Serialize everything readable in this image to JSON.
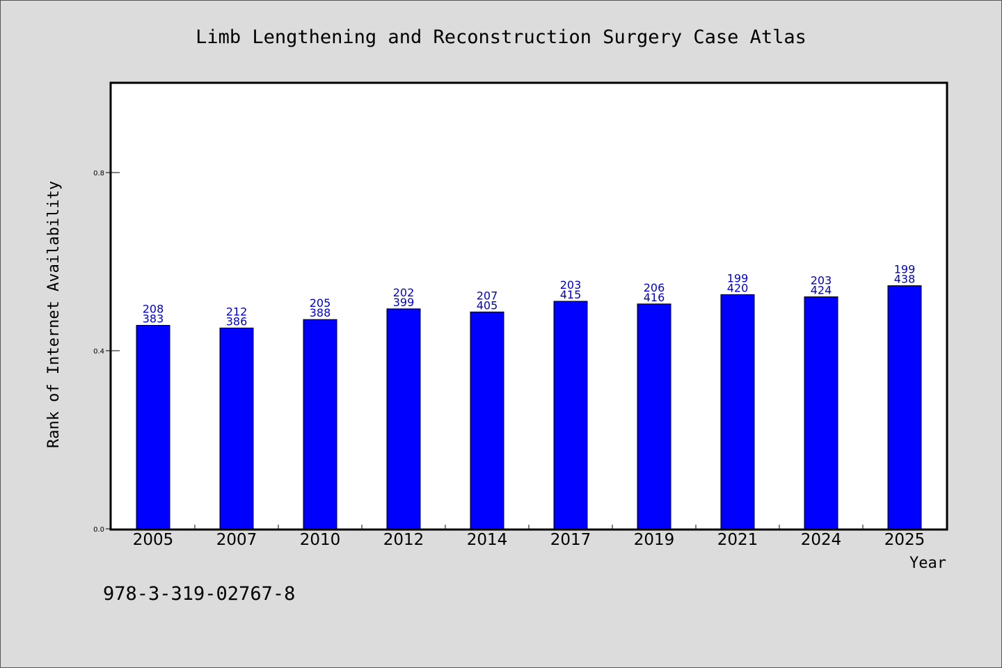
{
  "chart_data": {
    "type": "bar",
    "title": "Limb Lengthening and Reconstruction Surgery Case Atlas",
    "xlabel": "Year",
    "ylabel": "Rank of Internet Availability",
    "categories": [
      "2005",
      "2007",
      "2010",
      "2012",
      "2014",
      "2017",
      "2019",
      "2021",
      "2024",
      "2025"
    ],
    "values": [
      0.457,
      0.451,
      0.47,
      0.494,
      0.487,
      0.511,
      0.505,
      0.526,
      0.521,
      0.546
    ],
    "labels_top": [
      "208",
      "212",
      "205",
      "202",
      "207",
      "203",
      "206",
      "199",
      "203",
      "199"
    ],
    "labels_bottom": [
      "383",
      "386",
      "388",
      "399",
      "405",
      "415",
      "416",
      "420",
      "424",
      "438"
    ],
    "yticks": [
      "0.0",
      "0.4",
      "0.8"
    ],
    "ylim": [
      0,
      1.0
    ],
    "bar_color": "#0000ff",
    "label_color": "#0000cc",
    "grid": false
  },
  "footer": {
    "isbn": "978-3-319-02767-8"
  }
}
